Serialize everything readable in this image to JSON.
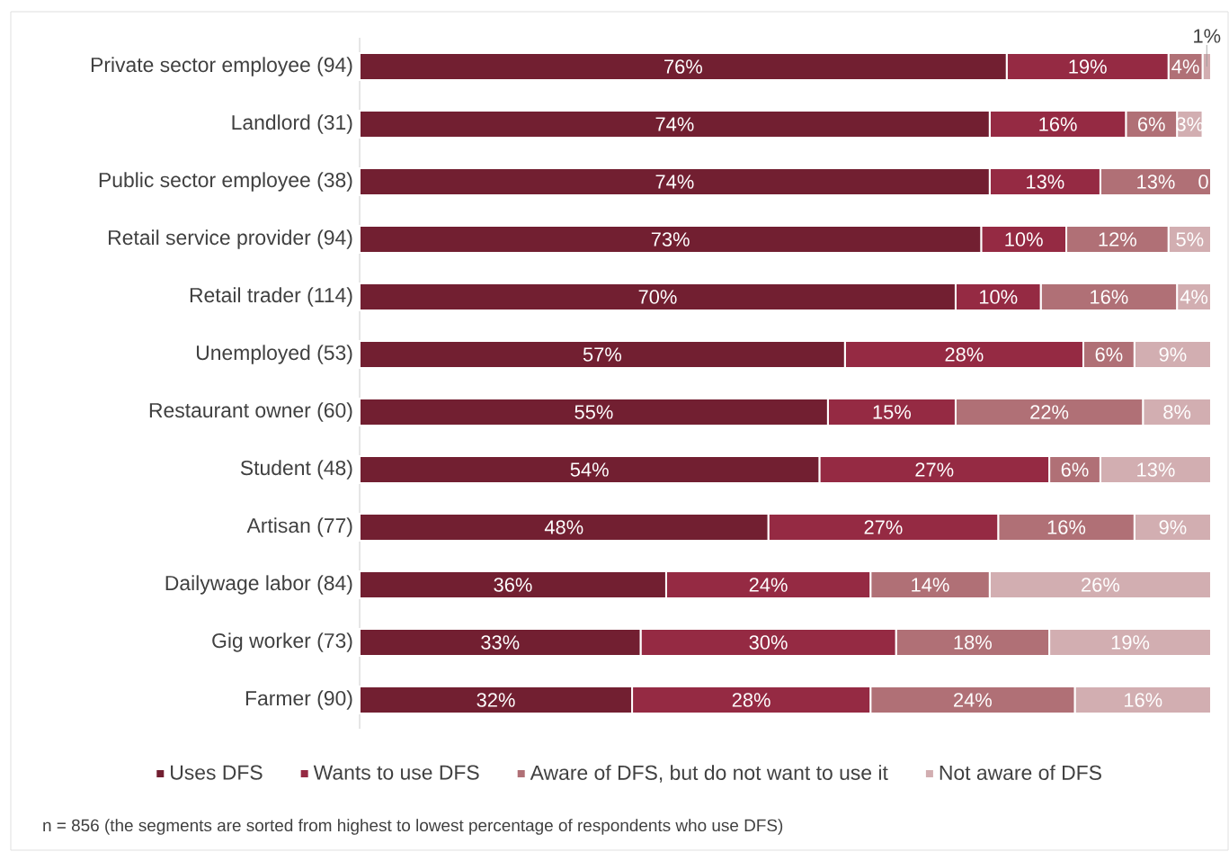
{
  "chart_data": {
    "type": "bar",
    "orientation": "horizontal",
    "stacked": true,
    "legend": "bottom",
    "categories": [
      "Private sector employee (94)",
      "Landlord (31)",
      "Public sector employee (38)",
      "Retail service provider (94)",
      "Retail trader (114)",
      "Unemployed (53)",
      "Restaurant owner (60)",
      "Student (48)",
      "Artisan (77)",
      "Dailywage labor (84)",
      "Gig worker (73)",
      "Farmer (90)"
    ],
    "series": [
      {
        "name": "Uses DFS",
        "color": "#721f31",
        "values": [
          76,
          74,
          74,
          73,
          70,
          57,
          55,
          54,
          48,
          36,
          33,
          32
        ],
        "value_labels": [
          "76%",
          "74%",
          "74%",
          "73%",
          "70%",
          "57%",
          "55%",
          "54%",
          "48%",
          "36%",
          "33%",
          "32%"
        ]
      },
      {
        "name": "Wants to use DFS",
        "color": "#952a43",
        "values": [
          19,
          16,
          13,
          10,
          10,
          28,
          15,
          27,
          27,
          24,
          30,
          28
        ],
        "value_labels": [
          "19%",
          "16%",
          "13%",
          "10%",
          "10%",
          "28%",
          "15%",
          "27%",
          "27%",
          "24%",
          "30%",
          "28%"
        ]
      },
      {
        "name": "Aware of DFS, but do not want to use it",
        "color": "#b07076",
        "values": [
          4,
          6,
          13,
          12,
          16,
          6,
          22,
          6,
          16,
          14,
          18,
          24
        ],
        "value_labels": [
          "4%",
          "6%",
          "13%",
          "12%",
          "16%",
          "6%",
          "22%",
          "6%",
          "16%",
          "14%",
          "18%",
          "24%"
        ]
      },
      {
        "name": "Not aware of DFS",
        "color": "#d2aeb1",
        "values": [
          1,
          3,
          0,
          5,
          4,
          9,
          8,
          13,
          9,
          26,
          19,
          16
        ],
        "value_labels": [
          "1%",
          "3%",
          "0",
          "5%",
          "4%",
          "9%",
          "8%",
          "13%",
          "9%",
          "26%",
          "19%",
          "16%"
        ]
      }
    ],
    "annotations": [
      "n = 856 (the segments are sorted from highest to lowest percentage of respondents who use DFS)"
    ]
  }
}
